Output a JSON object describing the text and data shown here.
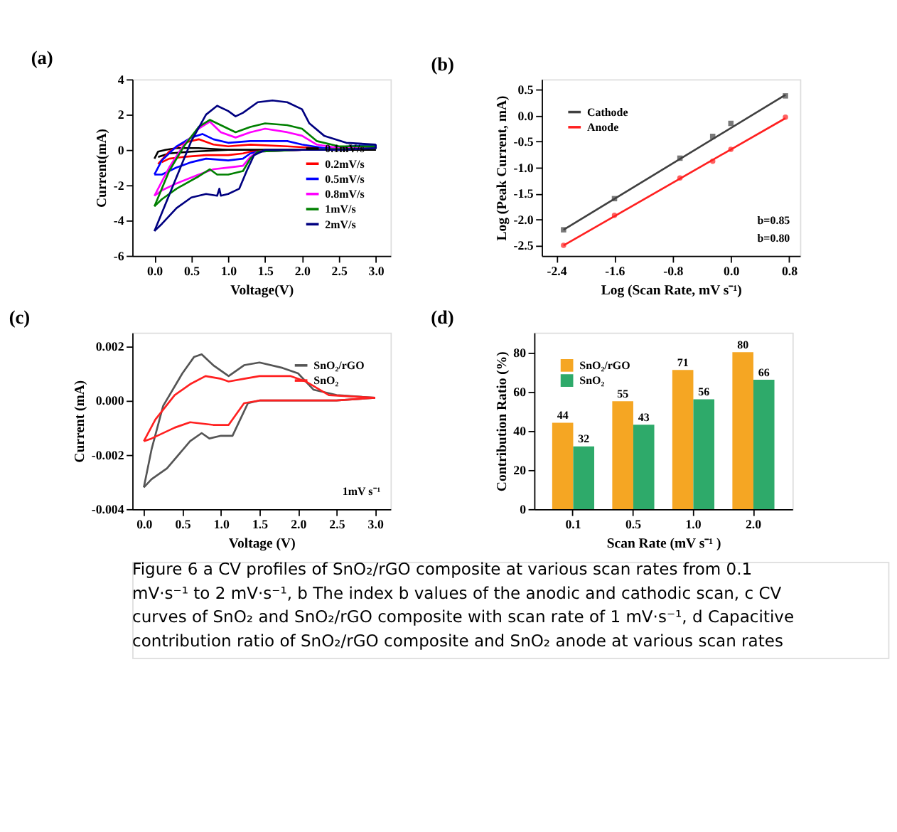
{
  "chart_data": [
    {
      "type": "line",
      "title": "(a)",
      "xlabel": "Voltage(V)",
      "ylabel": "Current(mA)",
      "legend": "bottom right",
      "grid": false,
      "xlim": [
        -0.3,
        3.2
      ],
      "xticks": [
        {
          "value": 0,
          "label": "0.0"
        },
        0.5,
        {
          "value": 1,
          "label": "1.0"
        },
        1.5,
        {
          "value": 2,
          "label": "2.0"
        },
        2.5,
        {
          "value": 3,
          "label": "3.0"
        }
      ],
      "ylim": [
        -6,
        4
      ],
      "yticks": [
        -6,
        -4,
        -2,
        0,
        2,
        4
      ],
      "series": [
        {
          "name": "0.1mV/s",
          "color": "#000000",
          "x": [
            0.0,
            0.05,
            0.15,
            0.3,
            0.6,
            1.0,
            2.0,
            3.0
          ],
          "values": [
            -0.5,
            -0.1,
            0.0,
            0.1,
            0.1,
            0.0,
            0.0,
            0.0
          ]
        },
        {
          "color": "#000000",
          "x": [
            3.0,
            2.0,
            1.0,
            0.5,
            0.2,
            0.05
          ],
          "values": [
            0.0,
            0.0,
            0.0,
            -0.1,
            -0.2,
            -0.4
          ]
        },
        {
          "name": "0.2mV/s",
          "color": "#ff0000",
          "x": [
            0.05,
            0.2,
            0.4,
            0.6,
            0.8,
            1.0,
            1.3,
            1.8,
            2.2,
            3.0
          ],
          "values": [
            -0.8,
            -0.1,
            0.4,
            0.6,
            0.3,
            0.2,
            0.3,
            0.2,
            0.1,
            0.1
          ]
        },
        {
          "color": "#ff0000",
          "x": [
            3.0,
            2.0,
            1.3,
            1.2,
            1.0,
            0.7,
            0.4,
            0.2,
            0.1
          ],
          "values": [
            0.1,
            0.0,
            -0.1,
            -0.2,
            -0.3,
            -0.3,
            -0.4,
            -0.5,
            -0.7
          ]
        },
        {
          "name": "0.5mV/s",
          "color": "#0000ff",
          "x": [
            0.0,
            0.1,
            0.3,
            0.5,
            0.65,
            0.8,
            1.0,
            1.3,
            1.5,
            1.8,
            2.0,
            2.3,
            3.0
          ],
          "values": [
            -1.4,
            -0.6,
            0.2,
            0.7,
            0.9,
            0.6,
            0.4,
            0.5,
            0.5,
            0.5,
            0.3,
            0.1,
            0.3
          ]
        },
        {
          "color": "#0000ff",
          "x": [
            3.0,
            3.0,
            2.0,
            1.4,
            1.3,
            1.2,
            1.0,
            0.7,
            0.5,
            0.3,
            0.1,
            0.0
          ],
          "values": [
            0.3,
            0.1,
            0.0,
            -0.1,
            -0.2,
            -0.5,
            -0.6,
            -0.5,
            -0.7,
            -1.0,
            -1.4,
            -1.4
          ]
        },
        {
          "name": "0.8mV/s",
          "color": "#ff00ff",
          "x": [
            0.0,
            0.2,
            0.4,
            0.6,
            0.75,
            0.9,
            1.1,
            1.3,
            1.5,
            1.8,
            2.0,
            2.2,
            2.5,
            3.0
          ],
          "values": [
            -2.6,
            -1.0,
            0.3,
            1.2,
            1.6,
            1.0,
            0.7,
            1.0,
            1.2,
            1.0,
            0.8,
            0.3,
            0.1,
            0.1
          ]
        },
        {
          "color": "#ff00ff",
          "x": [
            3.0,
            2.0,
            1.4,
            1.3,
            1.2,
            1.0,
            0.8,
            0.6,
            0.3,
            0.1,
            0.0
          ],
          "values": [
            0.1,
            0.0,
            -0.1,
            -0.4,
            -0.9,
            -1.0,
            -1.1,
            -1.4,
            -1.9,
            -2.3,
            -2.6
          ]
        },
        {
          "name": "1mV/s",
          "color": "#008000",
          "x": [
            0.0,
            0.2,
            0.4,
            0.6,
            0.75,
            0.9,
            1.1,
            1.3,
            1.5,
            1.8,
            2.0,
            2.2,
            2.5,
            3.0
          ],
          "values": [
            -3.2,
            -1.2,
            0.2,
            1.3,
            1.7,
            1.4,
            1.0,
            1.3,
            1.5,
            1.4,
            1.2,
            0.5,
            0.2,
            0.2
          ]
        },
        {
          "color": "#008000",
          "x": [
            3.0,
            3.0,
            2.0,
            1.4,
            1.3,
            1.2,
            1.0,
            0.85,
            0.75,
            0.6,
            0.3,
            0.1,
            0.0
          ],
          "values": [
            0.2,
            0.1,
            0.0,
            -0.1,
            -0.5,
            -1.2,
            -1.4,
            -1.4,
            -1.1,
            -1.5,
            -2.2,
            -2.8,
            -3.2
          ]
        },
        {
          "name": "2mV/s",
          "color": "#000080",
          "x": [
            0.0,
            0.5,
            0.7,
            0.85,
            1.0,
            1.1,
            1.2,
            1.4,
            1.6,
            1.8,
            2.0,
            2.1,
            2.3,
            2.6,
            3.0
          ],
          "values": [
            -4.6,
            0.5,
            2.0,
            2.5,
            2.2,
            1.9,
            2.1,
            2.7,
            2.8,
            2.7,
            2.3,
            1.5,
            0.8,
            0.4,
            0.3
          ]
        },
        {
          "color": "#000080",
          "x": [
            3.0,
            3.0,
            2.5,
            2.0,
            1.5,
            1.35,
            1.25,
            1.15,
            1.0,
            0.9,
            0.88,
            0.85,
            0.7,
            0.5,
            0.3,
            0.1,
            0.0
          ],
          "values": [
            0.3,
            0.1,
            0.0,
            0.0,
            0.0,
            -0.3,
            -1.2,
            -2.2,
            -2.5,
            -2.6,
            -2.2,
            -2.6,
            -2.5,
            -2.7,
            -3.3,
            -4.2,
            -4.6
          ]
        }
      ]
    },
    {
      "type": "line",
      "title": "(b)",
      "xlabel": "Log (Scan Rate, mV s⁻¹)",
      "ylabel": "Log (Peak Current, mA)",
      "legend": "top left",
      "grid": false,
      "xlim": [
        -2.6,
        0.95
      ],
      "xticks": [
        -2.4,
        -1.6,
        -0.8,
        {
          "value": 0,
          "label": "0.0"
        },
        0.8
      ],
      "ylim": [
        -2.7,
        0.7
      ],
      "yticks": [
        -2.5,
        {
          "value": -2,
          "label": "-2.0"
        },
        -1.5,
        {
          "value": -1,
          "label": "-1.0"
        },
        -0.5,
        {
          "value": 0,
          "label": "0.0"
        },
        0.5
      ],
      "annotations": [
        "b=0.85",
        "b=0.80"
      ],
      "series": [
        {
          "name": "Cathode",
          "color": "#404040",
          "type": "line",
          "x": [
            -2.3,
            0.75
          ],
          "values": [
            -2.2,
            0.4
          ]
        },
        {
          "name": "Anode",
          "color": "#ff2020",
          "type": "line",
          "x": [
            -2.3,
            0.75
          ],
          "values": [
            -2.5,
            -0.05
          ]
        },
        {
          "color": "#404040",
          "type": "scatter",
          "marker": "square",
          "x": [
            -2.3,
            -1.6,
            -0.7,
            -0.25,
            0.0,
            0.75
          ],
          "values": [
            -2.2,
            -1.6,
            -0.82,
            -0.4,
            -0.15,
            0.38
          ]
        },
        {
          "color": "#ff2020",
          "type": "scatter",
          "marker": "circle",
          "x": [
            -2.3,
            -1.6,
            -0.7,
            -0.25,
            0.0,
            0.75
          ],
          "values": [
            -2.5,
            -1.92,
            -1.2,
            -0.88,
            -0.65,
            -0.03
          ]
        }
      ]
    },
    {
      "type": "line",
      "title": "(c)",
      "xlabel": "Voltage (V)",
      "ylabel": "Current (mA)",
      "legend": "top right",
      "grid": false,
      "annotations": [
        "1mV s⁻¹"
      ],
      "xlim": [
        -0.15,
        3.2
      ],
      "xticks": [
        {
          "value": 0,
          "label": "0.0"
        },
        0.5,
        {
          "value": 1,
          "label": "1.0"
        },
        1.5,
        {
          "value": 2,
          "label": "2.0"
        },
        2.5,
        {
          "value": 3,
          "label": "3.0"
        }
      ],
      "ylim": [
        -0.004,
        0.0025
      ],
      "yticks": [
        {
          "value": -0.004,
          "label": "-0.004"
        },
        {
          "value": -0.002,
          "label": "-0.002"
        },
        {
          "value": 0,
          "label": "0.000"
        },
        {
          "value": 0.002,
          "label": "0.002"
        }
      ],
      "series": [
        {
          "name": "SnO₂/rGO",
          "color": "#555555",
          "x": [
            0.0,
            0.1,
            0.25,
            0.5,
            0.65,
            0.75,
            0.9,
            1.1,
            1.3,
            1.5,
            1.8,
            2.0,
            2.2,
            2.5,
            3.0
          ],
          "values": [
            -0.0032,
            -0.0018,
            -0.0002,
            0.001,
            0.0016,
            0.0017,
            0.0013,
            0.0009,
            0.0013,
            0.0014,
            0.0012,
            0.001,
            0.0004,
            0.0002,
            0.0001
          ]
        },
        {
          "color": "#555555",
          "x": [
            3.0,
            2.5,
            1.5,
            1.35,
            1.25,
            1.15,
            1.0,
            0.85,
            0.75,
            0.6,
            0.3,
            0.1,
            0.0
          ],
          "values": [
            0.0001,
            0.0,
            0.0,
            -0.0001,
            -0.0007,
            -0.0013,
            -0.0013,
            -0.0014,
            -0.0012,
            -0.0015,
            -0.0025,
            -0.0029,
            -0.0032
          ]
        },
        {
          "name": "SnO₂",
          "color": "#ff2020",
          "x": [
            0.0,
            0.15,
            0.4,
            0.6,
            0.8,
            1.0,
            1.1,
            1.3,
            1.5,
            1.9,
            2.1,
            2.4,
            3.0
          ],
          "values": [
            -0.0015,
            -0.0007,
            0.0002,
            0.0006,
            0.0009,
            0.0008,
            0.0007,
            0.0008,
            0.0009,
            0.0009,
            0.0007,
            0.0002,
            0.0001
          ]
        },
        {
          "color": "#ff2020",
          "x": [
            3.0,
            2.5,
            1.5,
            1.3,
            1.2,
            1.1,
            0.9,
            0.6,
            0.4,
            0.1,
            0.0
          ],
          "values": [
            0.0001,
            0.0,
            0.0,
            -0.0001,
            -0.0005,
            -0.0009,
            -0.0009,
            -0.0008,
            -0.001,
            -0.0014,
            -0.0015
          ]
        }
      ]
    },
    {
      "type": "bar",
      "title": "(d)",
      "xlabel": "Scan Rate (mV s⁻¹ )",
      "ylabel": "Contribution Ratio (%)",
      "legend": "top left",
      "grid": false,
      "data_labels": true,
      "categories": [
        "0.1",
        "0.5",
        "1.0",
        "2.0"
      ],
      "ylim": [
        0,
        90
      ],
      "yticks": [
        0,
        20,
        40,
        60,
        80
      ],
      "series": [
        {
          "name": "SnO₂/rGO",
          "color": "#f5a623",
          "values": [
            44,
            55,
            71,
            80
          ]
        },
        {
          "name": "SnO₂",
          "color": "#2eaa6a",
          "values": [
            32,
            43,
            56,
            66
          ]
        }
      ]
    },
    {
      "type": "other",
      "annotations": [
        "Figure 6  a  CV profiles of SnO₂/rGO composite at various scan rates from 0.1 mV·s⁻¹ to 2 mV·s⁻¹, b The index b values of the anodic and cathodic scan, c CV curves of SnO₂ and SnO₂/rGO composite with scan rate of 1 mV·s⁻¹, d Capacitive contribution ratio of SnO₂/rGO composite and SnO₂ anode at various scan rates"
      ]
    }
  ]
}
